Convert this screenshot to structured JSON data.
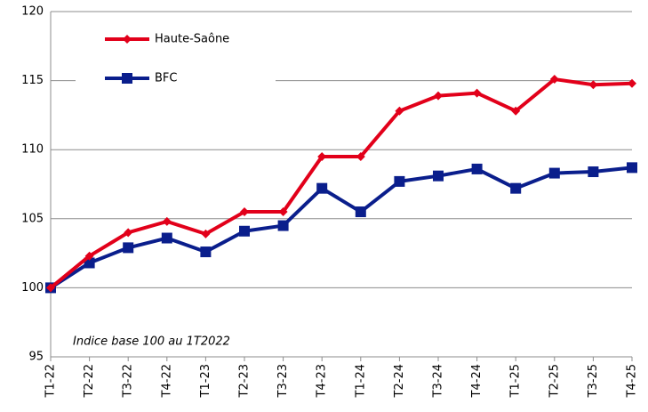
{
  "chart_data": {
    "type": "line",
    "annotation": "Indice base 100 au 1T2022",
    "categories": [
      "T1-22",
      "T2-22",
      "T3-22",
      "T4-22",
      "T1-23",
      "T2-23",
      "T3-23",
      "T4-23",
      "T1-24",
      "T2-24",
      "T3-24",
      "T4-24",
      "T1-25",
      "T2-25",
      "T3-25",
      "T4-25"
    ],
    "series": [
      {
        "name": "Haute-Saône",
        "color": "#e2001a",
        "marker": "diamond",
        "values": [
          100,
          102.3,
          104.0,
          104.8,
          103.9,
          105.5,
          105.5,
          109.5,
          109.5,
          112.8,
          113.9,
          114.1,
          112.8,
          115.1,
          114.7,
          114.8
        ]
      },
      {
        "name": "BFC",
        "color": "#0a1e8c",
        "marker": "square",
        "values": [
          100,
          101.8,
          102.9,
          103.6,
          102.6,
          104.1,
          104.5,
          107.2,
          105.5,
          107.7,
          108.1,
          108.6,
          107.2,
          108.3,
          108.4,
          108.7
        ]
      }
    ],
    "ylim": [
      95,
      120
    ],
    "yticks": [
      95,
      100,
      105,
      110,
      115,
      120
    ],
    "grid": true
  }
}
